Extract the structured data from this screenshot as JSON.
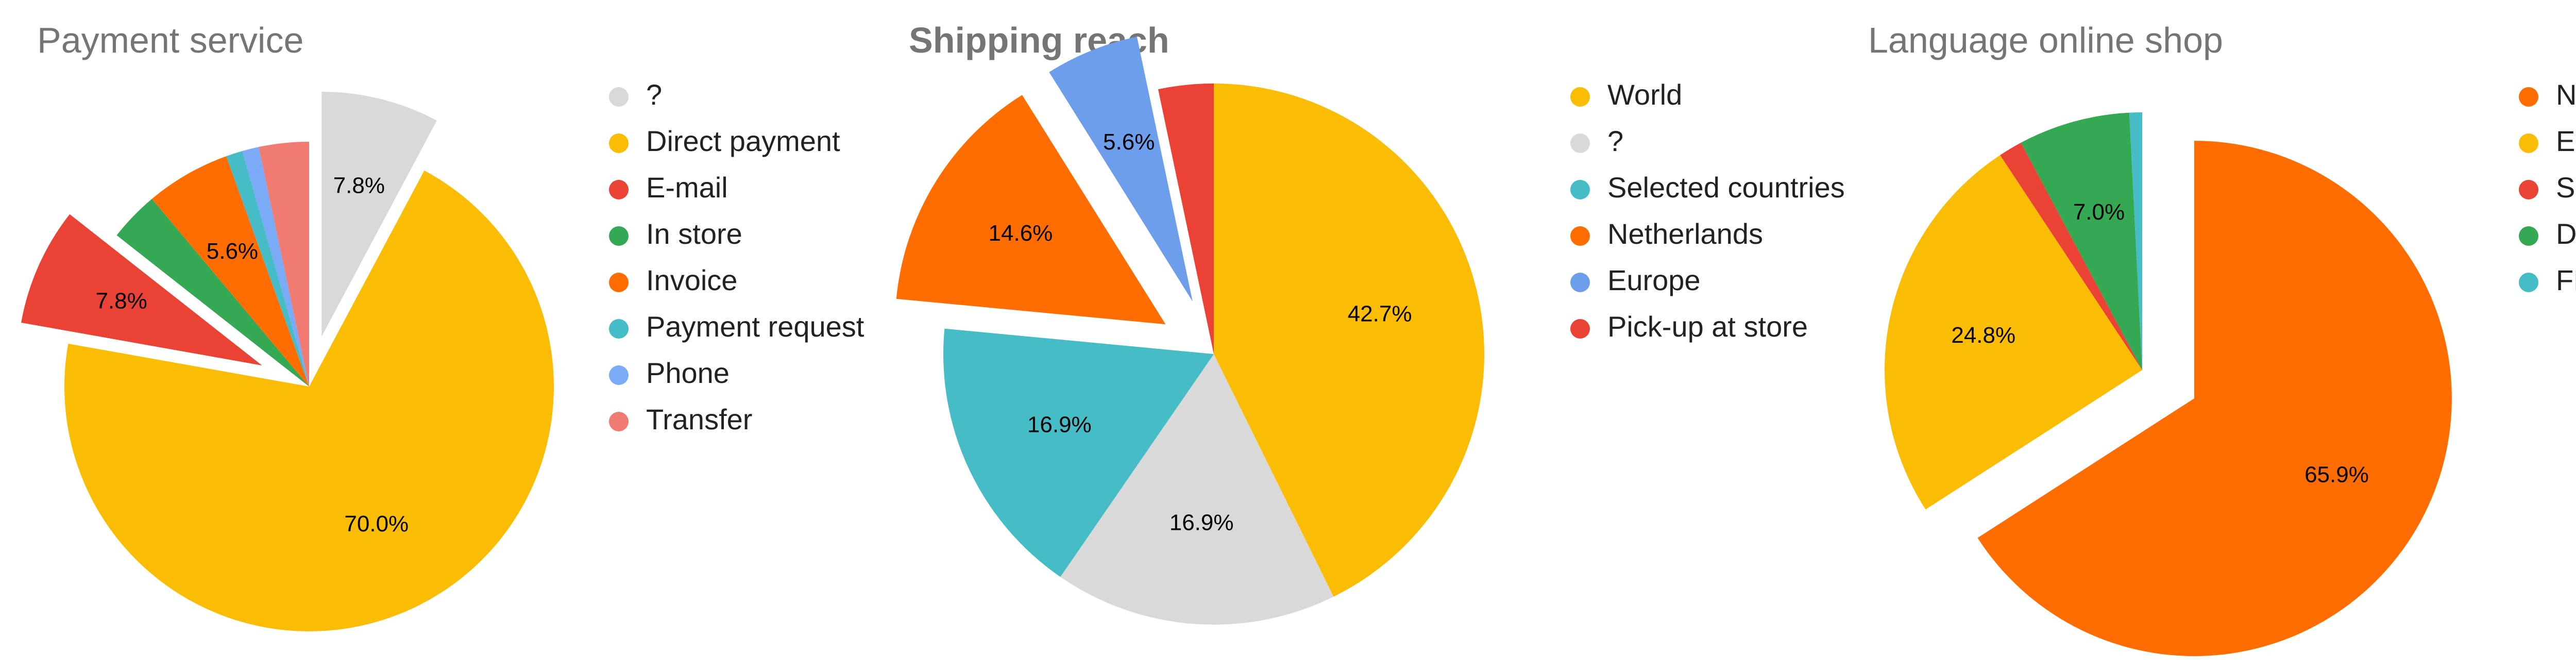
{
  "chart_data": [
    {
      "type": "pie",
      "title": "Payment service",
      "title_bold": false,
      "legend_position": "right",
      "slices": [
        {
          "label": "?",
          "value": 7.8,
          "color": "#d9d9d9",
          "pct_label": "7.8%",
          "exploded": true
        },
        {
          "label": "Direct payment",
          "value": 70.0,
          "color": "#fbbc04",
          "pct_label": "70.0%",
          "exploded": false
        },
        {
          "label": "E-mail",
          "value": 7.8,
          "color": "#ea4335",
          "pct_label": "7.8%",
          "exploded": true
        },
        {
          "label": "In store",
          "value": 3.3,
          "color": "#34a853",
          "pct_label": "",
          "exploded": false
        },
        {
          "label": "Invoice",
          "value": 5.6,
          "color": "#ff6d01",
          "pct_label": "5.6%",
          "exploded": false
        },
        {
          "label": "Payment request",
          "value": 1.1,
          "color": "#46bdc6",
          "pct_label": "",
          "exploded": false
        },
        {
          "label": "Phone",
          "value": 1.1,
          "color": "#7baaf7",
          "pct_label": "",
          "exploded": false
        },
        {
          "label": "Transfer",
          "value": 3.3,
          "color": "#f07b72",
          "pct_label": "",
          "exploded": false
        }
      ]
    },
    {
      "type": "pie",
      "title": "Shipping reach",
      "title_bold": true,
      "legend_position": "right",
      "slices": [
        {
          "label": "World",
          "value": 42.7,
          "color": "#fbbc04",
          "pct_label": "42.7%",
          "exploded": false
        },
        {
          "label": "?",
          "value": 16.9,
          "color": "#d9d9d9",
          "pct_label": "16.9%",
          "exploded": false
        },
        {
          "label": "Selected countries",
          "value": 16.9,
          "color": "#46bdc6",
          "pct_label": "16.9%",
          "exploded": false
        },
        {
          "label": "Netherlands",
          "value": 14.6,
          "color": "#ff6d01",
          "pct_label": "14.6%",
          "exploded": true
        },
        {
          "label": "Europe",
          "value": 5.6,
          "color": "#6d9eeb",
          "pct_label": "5.6%",
          "exploded": true
        },
        {
          "label": "Pick-up at store",
          "value": 3.3,
          "color": "#ea4335",
          "pct_label": "",
          "exploded": false
        }
      ]
    },
    {
      "type": "pie",
      "title": "Language online shop",
      "title_bold": false,
      "legend_position": "right",
      "slices": [
        {
          "label": "NL",
          "value": 65.9,
          "color": "#ff6d01",
          "pct_label": "65.9%",
          "exploded": true
        },
        {
          "label": "ENG",
          "value": 24.8,
          "color": "#fbbc04",
          "pct_label": "24.8%",
          "exploded": false
        },
        {
          "label": "SP",
          "value": 1.5,
          "color": "#ea4335",
          "pct_label": "",
          "exploded": false
        },
        {
          "label": "DEU",
          "value": 7.0,
          "color": "#34a853",
          "pct_label": "7.0%",
          "exploded": false
        },
        {
          "label": "FR",
          "value": 0.8,
          "color": "#46bdc6",
          "pct_label": "",
          "exploded": false
        }
      ]
    }
  ]
}
